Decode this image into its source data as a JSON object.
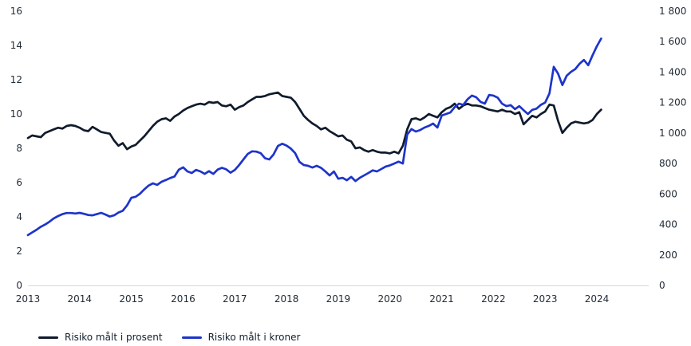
{
  "chart": {
    "background_color": "#ffffff",
    "axis_line_color": "#d9d9d9",
    "tick_text_color": "#222c36",
    "legend_text_color": "#13202e"
  },
  "chart_data": {
    "type": "line",
    "title": "",
    "xlabel": "",
    "ylabel_left": "",
    "ylabel_right": "",
    "grid": false,
    "legend_position": "bottom-left",
    "x_unit": "monthly from January 2013 to February 2024",
    "x_tick_labels": [
      "2013",
      "2014",
      "2015",
      "2016",
      "2017",
      "2018",
      "2019",
      "2020",
      "2021",
      "2022",
      "2023",
      "2024"
    ],
    "left_axis": {
      "min": 0,
      "max": 16,
      "tick_step": 2,
      "tick_labels_top_to_bottom": [
        "16",
        "14",
        "12",
        "10",
        "8",
        "6",
        "4",
        "2",
        "0"
      ]
    },
    "right_axis": {
      "min": 0,
      "max": 1800,
      "tick_step": 200,
      "tick_labels_top_to_bottom": [
        "1 800",
        "1 600",
        "1 400",
        "1 200",
        "1 000",
        "800",
        "600",
        "400",
        "200",
        "0"
      ]
    },
    "series": [
      {
        "name": "Risiko målt i prosent",
        "axis": "left",
        "color": "#101b2c",
        "values": [
          8.6,
          8.75,
          8.7,
          8.65,
          8.9,
          9.0,
          9.1,
          9.2,
          9.15,
          9.3,
          9.35,
          9.3,
          9.2,
          9.05,
          9.0,
          9.25,
          9.1,
          8.95,
          8.9,
          8.85,
          8.45,
          8.15,
          8.3,
          7.95,
          8.1,
          8.2,
          8.45,
          8.7,
          9.0,
          9.3,
          9.55,
          9.7,
          9.75,
          9.6,
          9.85,
          10.0,
          10.2,
          10.35,
          10.45,
          10.55,
          10.6,
          10.55,
          10.7,
          10.65,
          10.7,
          10.5,
          10.45,
          10.55,
          10.25,
          10.4,
          10.5,
          10.7,
          10.85,
          11.0,
          11.0,
          11.05,
          11.15,
          11.2,
          11.25,
          11.05,
          11.0,
          10.95,
          10.7,
          10.3,
          9.9,
          9.65,
          9.45,
          9.3,
          9.1,
          9.2,
          9.0,
          8.85,
          8.7,
          8.75,
          8.5,
          8.4,
          8.0,
          8.05,
          7.9,
          7.8,
          7.9,
          7.8,
          7.75,
          7.75,
          7.7,
          7.8,
          7.7,
          8.15,
          9.1,
          9.7,
          9.75,
          9.65,
          9.8,
          10.0,
          9.9,
          9.8,
          10.1,
          10.3,
          10.4,
          10.6,
          10.3,
          10.5,
          10.6,
          10.5,
          10.5,
          10.45,
          10.35,
          10.25,
          10.2,
          10.15,
          10.25,
          10.15,
          10.15,
          10.0,
          10.1,
          9.4,
          9.65,
          9.9,
          9.8,
          10.0,
          10.15,
          10.55,
          10.5,
          9.6,
          8.9,
          9.2,
          9.45,
          9.55,
          9.5,
          9.45,
          9.5,
          9.65,
          10.0,
          10.25
        ]
      },
      {
        "name": "Risiko målt i kroner",
        "axis": "right",
        "color": "#1d34cb",
        "values": [
          330,
          348,
          365,
          385,
          400,
          418,
          440,
          455,
          468,
          475,
          475,
          472,
          476,
          470,
          462,
          460,
          468,
          476,
          465,
          452,
          460,
          478,
          490,
          525,
          575,
          582,
          602,
          630,
          655,
          670,
          660,
          680,
          692,
          705,
          715,
          760,
          775,
          748,
          738,
          758,
          748,
          732,
          750,
          732,
          760,
          772,
          762,
          740,
          758,
          790,
          827,
          863,
          880,
          878,
          868,
          835,
          827,
          860,
          915,
          930,
          918,
          898,
          868,
          811,
          790,
          785,
          774,
          785,
          772,
          748,
          722,
          748,
          700,
          706,
          690,
          712,
          685,
          706,
          722,
          738,
          755,
          748,
          764,
          780,
          788,
          800,
          812,
          800,
          990,
          1026,
          1010,
          1020,
          1036,
          1047,
          1062,
          1036,
          1115,
          1125,
          1135,
          1170,
          1193,
          1185,
          1222,
          1246,
          1235,
          1205,
          1193,
          1250,
          1246,
          1232,
          1193,
          1177,
          1183,
          1157,
          1177,
          1150,
          1125,
          1152,
          1160,
          1185,
          1200,
          1260,
          1435,
          1390,
          1315,
          1376,
          1402,
          1420,
          1455,
          1480,
          1445,
          1510,
          1570,
          1620
        ]
      }
    ]
  }
}
